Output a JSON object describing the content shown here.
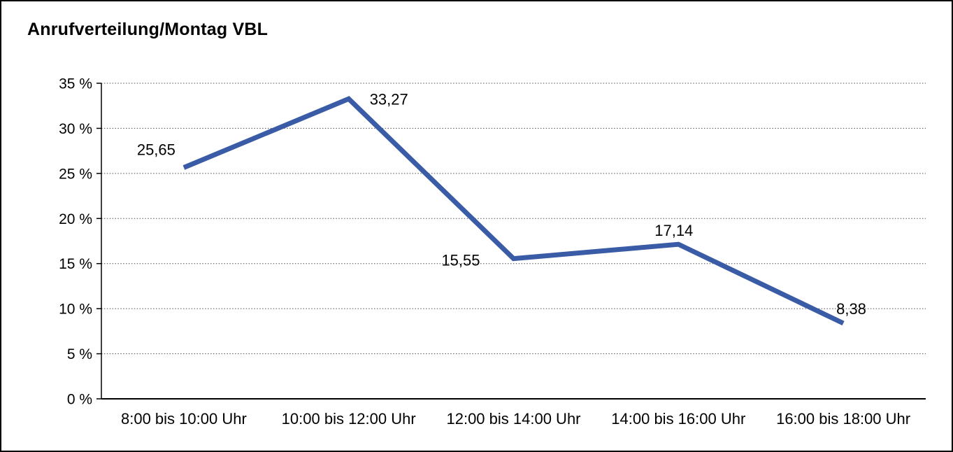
{
  "chart_data": {
    "type": "line",
    "title": "Anrufverteilung/Montag VBL",
    "categories": [
      "8:00 bis 10:00 Uhr",
      "10:00 bis 12:00 Uhr",
      "12:00 bis 14:00 Uhr",
      "14:00 bis 16:00 Uhr",
      "16:00 bis 18:00 Uhr"
    ],
    "values": [
      25.65,
      33.27,
      15.55,
      17.14,
      8.38
    ],
    "point_labels": [
      "25,65",
      "33,27",
      "15,55",
      "17,14",
      "8,38"
    ],
    "xlabel": "",
    "ylabel": "",
    "ylim": [
      0,
      35
    ],
    "ytick_step": 5,
    "ytick_labels": [
      "0 %",
      "5 %",
      "10 %",
      "15 %",
      "20 %",
      "25 %",
      "30 %",
      "35 %"
    ],
    "grid": "dotted-horizontal",
    "legend": "none",
    "line_color": "#3a5ba6",
    "axis_color": "#000000",
    "gridline_color": "#4d4d4d",
    "text_color": "#000000",
    "background": "#ffffff"
  }
}
